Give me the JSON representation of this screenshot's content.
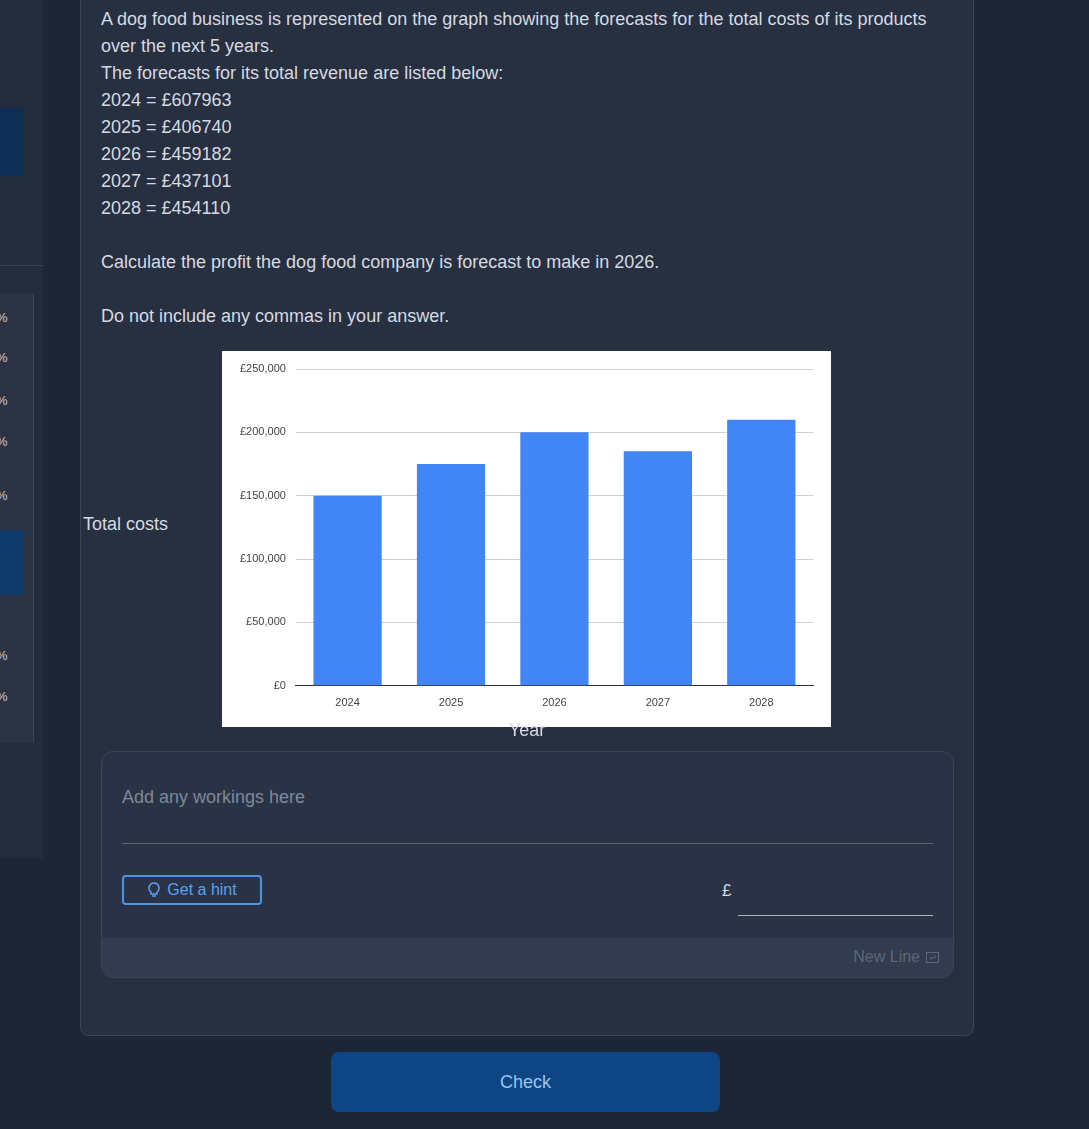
{
  "sidebar": {
    "items": [
      "%",
      "%",
      "%",
      "%",
      "%",
      "-",
      "-",
      "%",
      "%",
      "-"
    ]
  },
  "question": {
    "paragraphs": [
      [
        "A dog food business is represented on the graph showing the forecasts for the total costs of its products over the next 5 years.",
        "The forecasts for its total revenue are listed below:",
        "2024 = £607963",
        "2025 = £406740",
        "2026 = £459182",
        "2027 = £437101",
        "2028 = £454110"
      ],
      [
        "Calculate the profit the dog food company is forecast to make in 2026."
      ],
      [
        "Do not include any commas in your answer."
      ]
    ]
  },
  "chart_data": {
    "type": "bar",
    "categories": [
      "2024",
      "2025",
      "2026",
      "2027",
      "2028"
    ],
    "values": [
      150000,
      175000,
      200000,
      185000,
      210000
    ],
    "color": "#4285f4",
    "x_label": "Year",
    "y_label": "Total costs",
    "ylim": [
      0,
      250000
    ],
    "yticks": [
      {
        "value": 0,
        "label": "£0"
      },
      {
        "value": 50000,
        "label": "£50,000"
      },
      {
        "value": 100000,
        "label": "£100,000"
      },
      {
        "value": 150000,
        "label": "£150,000"
      },
      {
        "value": 200000,
        "label": "£200,000"
      },
      {
        "value": 250000,
        "label": "£250,000"
      }
    ],
    "grid": true,
    "legend": false
  },
  "answer": {
    "placeholder": "Add any workings here",
    "hint": "Get a hint",
    "currency": "£",
    "new_line": "New Line"
  },
  "button": "Check"
}
